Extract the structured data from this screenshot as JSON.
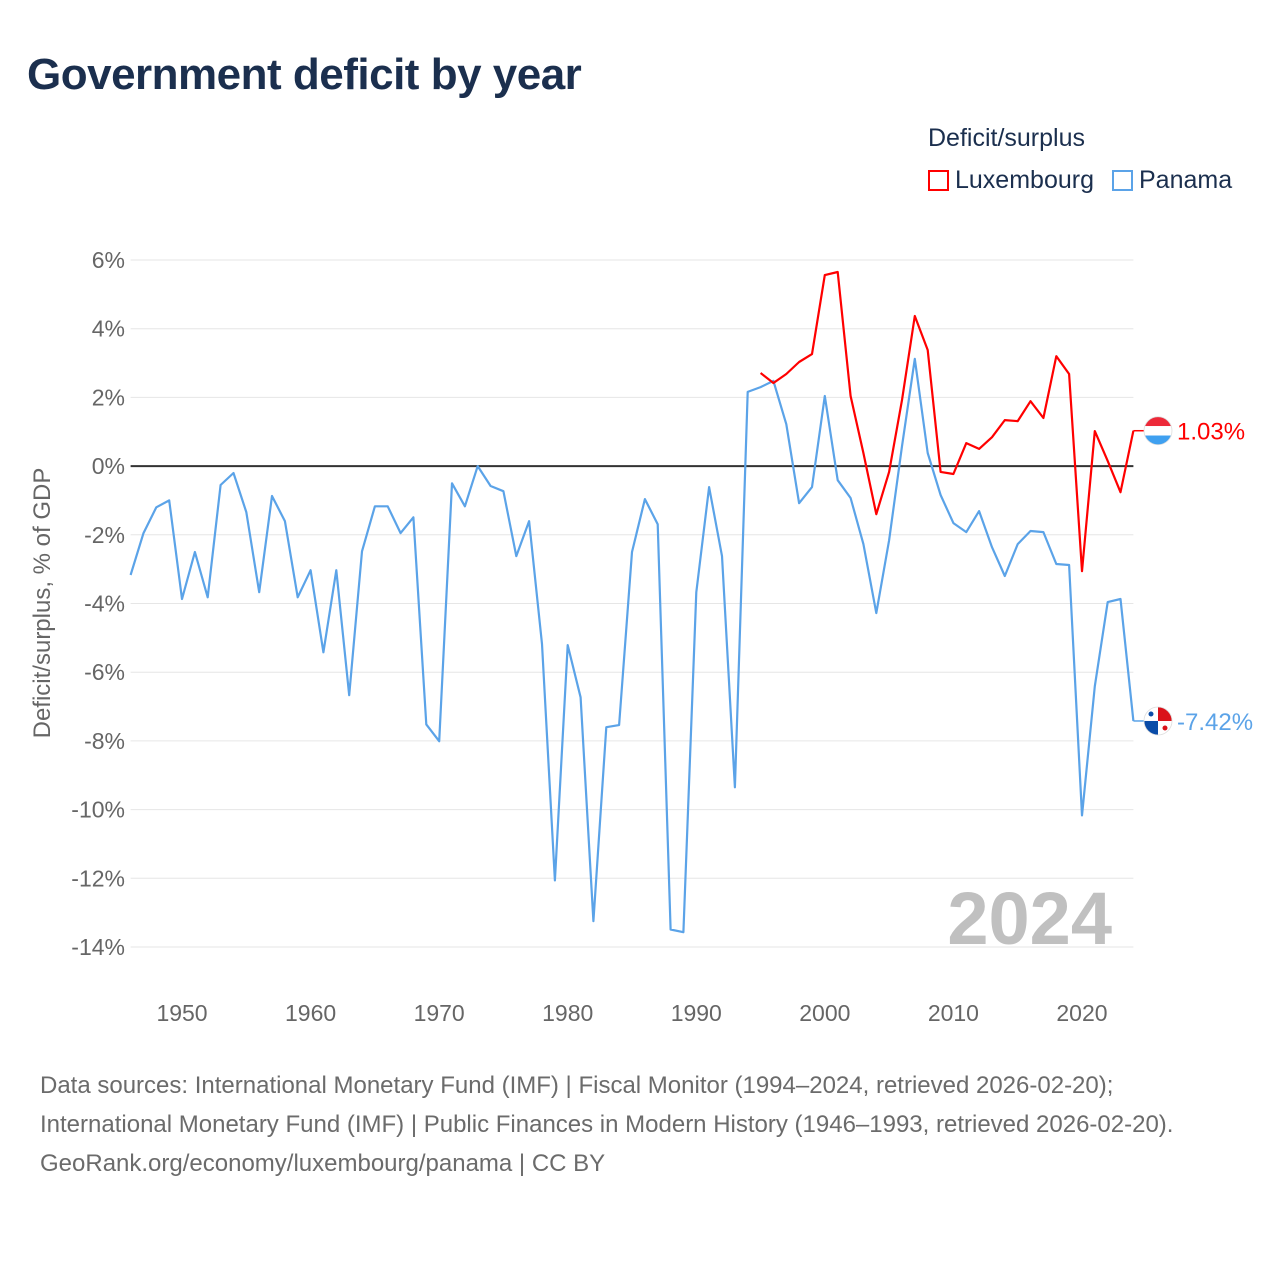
{
  "title": "Government deficit by year",
  "legend": {
    "title": "Deficit/surplus",
    "items": [
      {
        "name": "Luxembourg",
        "color": "#ff0000"
      },
      {
        "name": "Panama",
        "color": "#5ba3e8"
      }
    ]
  },
  "watermark_year": "2024",
  "chart_data": {
    "type": "line",
    "title": "Government deficit by year",
    "xlabel": "",
    "ylabel": "Deficit/surplus, % of GDP",
    "xlim": [
      1946,
      2024
    ],
    "ylim": [
      -14,
      6
    ],
    "x_ticks": [
      1950,
      1960,
      1970,
      1980,
      1990,
      2000,
      2010,
      2020
    ],
    "x_tick_labels": [
      "1950",
      "1960",
      "1970",
      "1980",
      "1990",
      "2000",
      "2010",
      "2020"
    ],
    "y_ticks": [
      6,
      4,
      2,
      0,
      -2,
      -4,
      -6,
      -8,
      -10,
      -12,
      -14
    ],
    "y_tick_labels": [
      "6%",
      "4%",
      "2%",
      "0%",
      "-2%",
      "-4%",
      "-6%",
      "-8%",
      "-10%",
      "-12%",
      "-14%"
    ],
    "grid": true,
    "legend_position": "top-right",
    "series": [
      {
        "name": "Luxembourg",
        "color": "#ff0000",
        "end_label": "1.03%",
        "start_year": 1995,
        "values": [
          2.71,
          2.42,
          2.68,
          3.03,
          3.26,
          5.56,
          5.65,
          2.04,
          0.38,
          -1.4,
          -0.17,
          1.92,
          4.37,
          3.38,
          -0.17,
          -0.23,
          0.67,
          0.5,
          0.84,
          1.34,
          1.31,
          1.89,
          1.4,
          3.2,
          2.68,
          -3.06,
          1.02,
          0.15,
          -0.76,
          1.03
        ]
      },
      {
        "name": "Panama",
        "color": "#5ba3e8",
        "end_label": "-7.42%",
        "start_year": 1946,
        "values": [
          -3.17,
          -1.95,
          -1.2,
          -1.0,
          -3.87,
          -2.5,
          -3.82,
          -0.55,
          -0.2,
          -1.34,
          -3.67,
          -0.87,
          -1.6,
          -3.82,
          -3.03,
          -5.42,
          -3.03,
          -6.67,
          -2.48,
          -1.17,
          -1.17,
          -1.95,
          -1.49,
          -7.52,
          -8.01,
          -0.5,
          -1.17,
          0.0,
          -0.58,
          -0.73,
          -2.62,
          -1.6,
          -5.18,
          -12.06,
          -5.21,
          -6.73,
          -13.25,
          -7.6,
          -7.54,
          -2.5,
          -0.96,
          -1.69,
          -13.49,
          -13.57,
          -3.67,
          -0.61,
          -2.62,
          -9.35,
          2.16,
          2.3,
          2.48,
          1.22,
          -1.08,
          -0.61,
          2.04,
          -0.41,
          -0.93,
          -2.27,
          -4.28,
          -2.16,
          0.58,
          3.12,
          0.38,
          -0.84,
          -1.66,
          -1.92,
          -1.31,
          -2.36,
          -3.2,
          -2.27,
          -1.89,
          -1.92,
          -2.85,
          -2.88,
          -10.17,
          -6.41,
          -3.96,
          -3.87,
          -7.42
        ]
      }
    ]
  },
  "footer": {
    "sources": "Data sources: International Monetary Fund (IMF) | Fiscal Monitor (1994–2024, retrieved 2026-02-20); International Monetary Fund (IMF) | Public Finances in Modern History (1946–1993, retrieved 2026-02-20).",
    "credit": "GeoRank.org/economy/luxembourg/panama | CC BY"
  }
}
